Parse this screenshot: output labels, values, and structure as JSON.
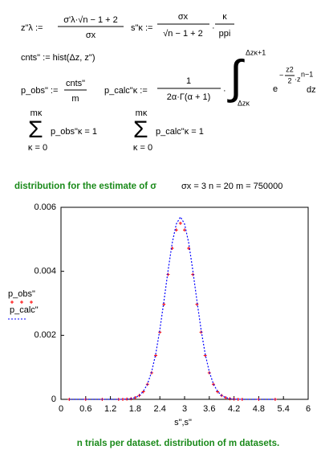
{
  "formulas": [
    "z\"λ :=",
    "σ'λ·√n − 1 + 2",
    "σx",
    "s\"κ :=",
    "σx",
    "√n − 1 + 2",
    "·",
    "κ",
    "ppi",
    "cnts\" := hist(Δz, z\")",
    "p_obs\" :=",
    "cnts\"",
    "m",
    "p_calc\"κ :=",
    "1",
    "2α·Γ(α + 1)",
    "·",
    "∫",
    "Δzκ+1",
    "Δzκ",
    "e",
    "−",
    "z2",
    "2",
    "·z",
    "n−1",
    "dz",
    "Σ",
    "mκ",
    "κ = 0",
    "p_obs\"κ = 1",
    "Σ",
    "mκ",
    "κ = 0",
    "p_calc\"κ = 1"
  ],
  "heading": {
    "text": "distribution for the estimate of σ",
    "params": "σx = 3    n = 20    m = 750000"
  },
  "footer": "n trials per dataset. distribution of m datasets.",
  "chart_data": {
    "type": "line",
    "xlabel": "s\",s\"",
    "x": [
      0.2,
      0.6,
      1.0,
      1.4,
      1.5,
      1.6,
      1.7,
      1.8,
      1.9,
      2.0,
      2.1,
      2.2,
      2.3,
      2.4,
      2.5,
      2.6,
      2.7,
      2.8,
      2.9,
      3.0,
      3.1,
      3.2,
      3.3,
      3.4,
      3.5,
      3.6,
      3.7,
      3.8,
      3.9,
      4.0,
      4.1,
      4.2,
      4.3,
      4.4,
      4.8,
      5.2
    ],
    "series": [
      {
        "name": "p_obs\"",
        "color": "#ff0000",
        "style": "crosses",
        "values": [
          0,
          0,
          0,
          0,
          0,
          1e-05,
          2e-05,
          5e-05,
          0.00012,
          0.00024,
          0.00047,
          0.00083,
          0.00137,
          0.0021,
          0.00297,
          0.0039,
          0.00472,
          0.00529,
          0.0055,
          0.00529,
          0.00472,
          0.0039,
          0.00297,
          0.0021,
          0.00137,
          0.00083,
          0.00047,
          0.00024,
          0.00012,
          5e-05,
          2e-05,
          1e-05,
          0,
          0,
          0,
          0
        ]
      },
      {
        "name": "p_calc\"",
        "color": "#0000ff",
        "style": "dotted",
        "values": [
          0,
          0,
          0,
          1e-06,
          3e-06,
          8e-06,
          2.2e-05,
          5.4e-05,
          0.00012,
          0.00025,
          0.00048,
          0.00086,
          0.00142,
          0.00218,
          0.00308,
          0.00403,
          0.00489,
          0.00548,
          0.0057,
          0.00548,
          0.00489,
          0.00403,
          0.00308,
          0.00218,
          0.00142,
          0.00086,
          0.00048,
          0.00025,
          0.00012,
          5.4e-05,
          2.2e-05,
          8e-06,
          3e-06,
          1e-06,
          0,
          0
        ]
      }
    ],
    "xlim": [
      0,
      6
    ],
    "xticks": [
      0,
      0.6,
      1.2,
      1.8,
      2.4,
      3,
      3.6,
      4.2,
      4.8,
      5.4,
      6
    ],
    "ylim": [
      0,
      0.006
    ],
    "yticks": [
      0,
      0.002,
      0.004,
      0.006
    ],
    "grid": false
  }
}
